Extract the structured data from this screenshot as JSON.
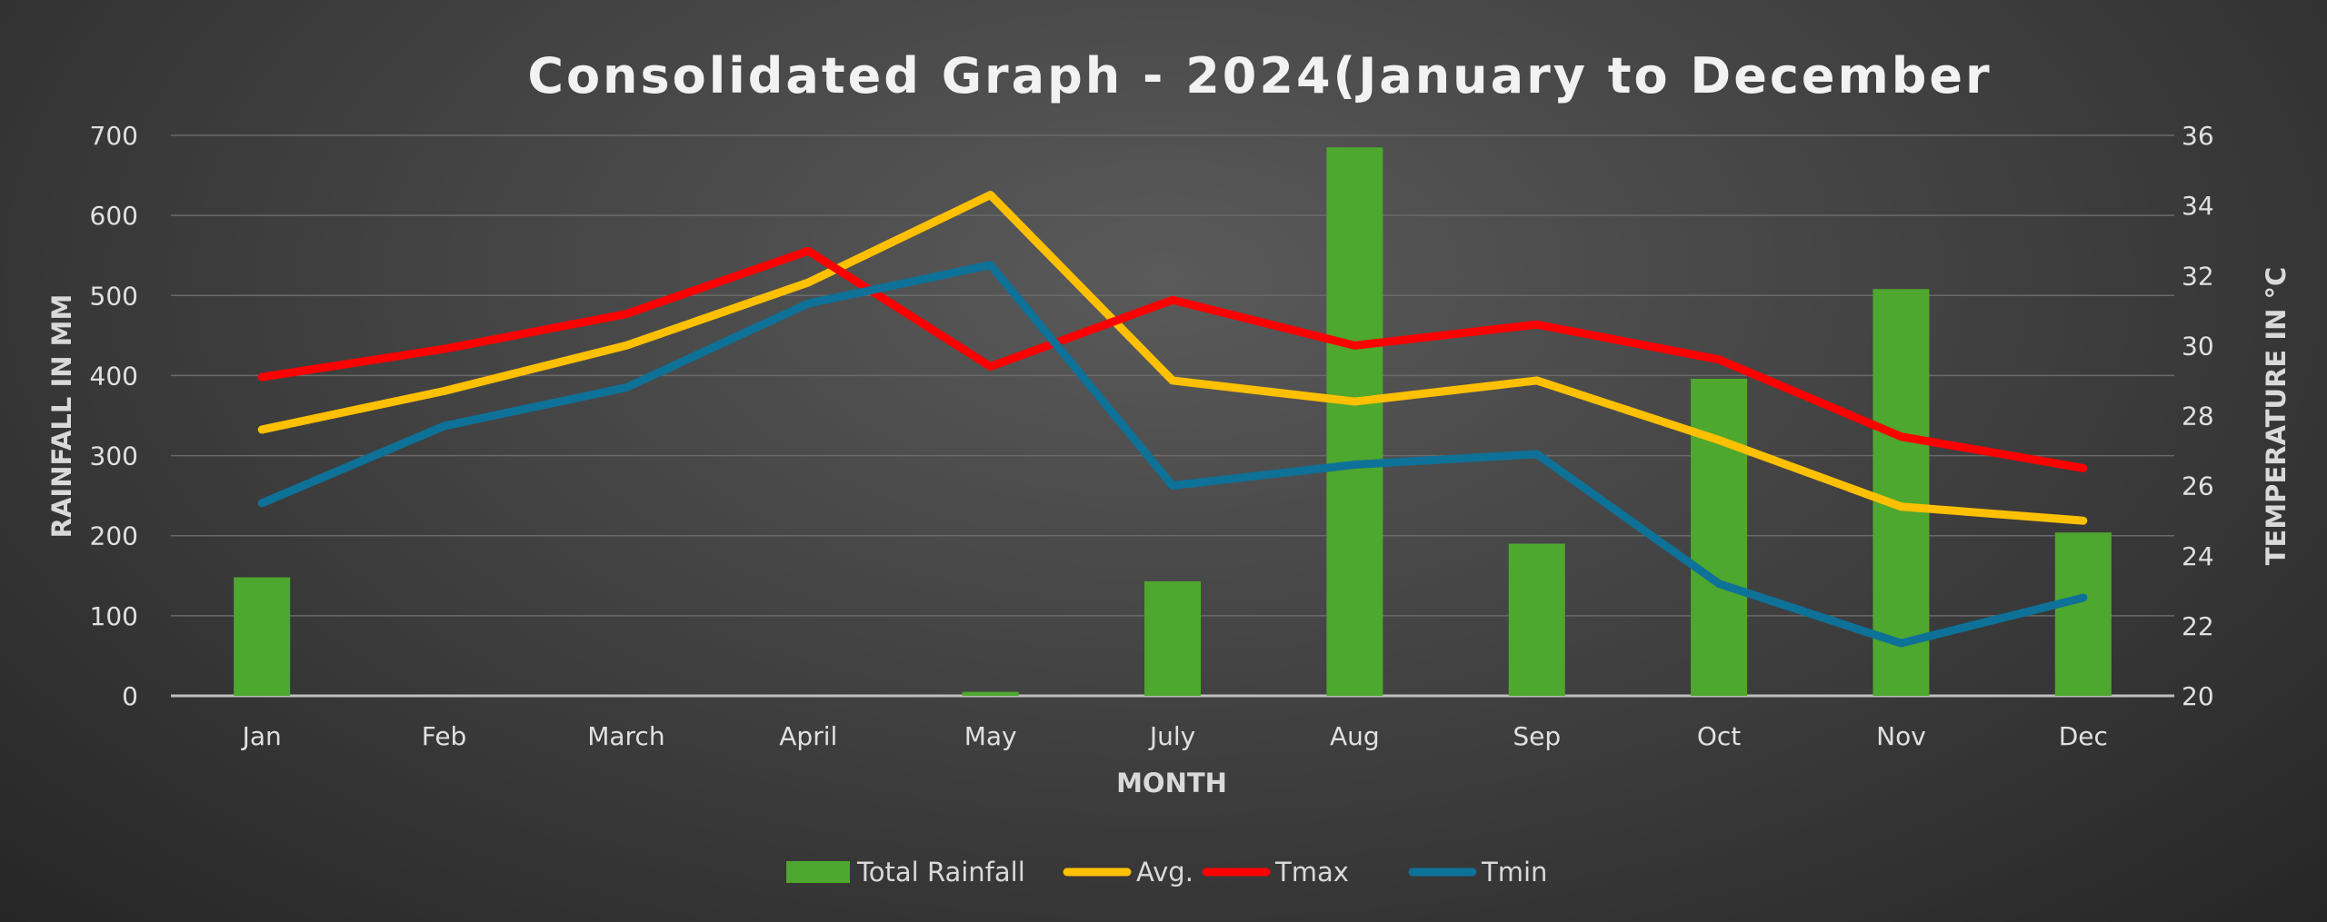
{
  "chart_data": {
    "type": "bar+line",
    "title": "Consolidated Graph - 2024(January to December",
    "xlabel": "MONTH",
    "ylabel": "RAINFALL IN MM",
    "y2label": "TEMPERATURE IN °C",
    "categories": [
      "Jan",
      "Feb",
      "March",
      "April",
      "May",
      "July",
      "Aug",
      "Sep",
      "Oct",
      "Nov",
      "Dec"
    ],
    "ylim": [
      0,
      700
    ],
    "yticks": [
      "0",
      "100",
      "200",
      "300",
      "400",
      "500",
      "600",
      "700"
    ],
    "y2lim": [
      20,
      36
    ],
    "y2ticks": [
      "20",
      "22",
      "24",
      "26",
      "28",
      "30",
      "32",
      "34",
      "36"
    ],
    "grid": true,
    "legend_position": "bottom",
    "series": [
      {
        "name": "Total Rainfall",
        "type": "bar",
        "axis": "left",
        "color": "#4ea72e",
        "values": [
          148,
          0,
          0,
          0,
          5,
          143,
          685,
          190,
          396,
          508,
          204
        ]
      },
      {
        "name": "Avg.",
        "type": "line",
        "axis": "right",
        "color": "#ffc000",
        "values": [
          27.6,
          28.7,
          30.0,
          31.8,
          34.3,
          29.0,
          28.4,
          29.0,
          27.3,
          25.4,
          25.0
        ]
      },
      {
        "name": "Tmax",
        "type": "line",
        "axis": "right",
        "color": "#ff0000",
        "values": [
          29.1,
          29.9,
          30.9,
          32.7,
          29.4,
          31.3,
          30.0,
          30.6,
          29.6,
          27.4,
          26.5
        ]
      },
      {
        "name": "Tmin",
        "type": "line",
        "axis": "right",
        "color": "#0e7198",
        "values": [
          25.5,
          27.7,
          28.8,
          31.2,
          32.3,
          26.0,
          26.6,
          26.9,
          23.2,
          21.5,
          22.8
        ]
      }
    ]
  }
}
